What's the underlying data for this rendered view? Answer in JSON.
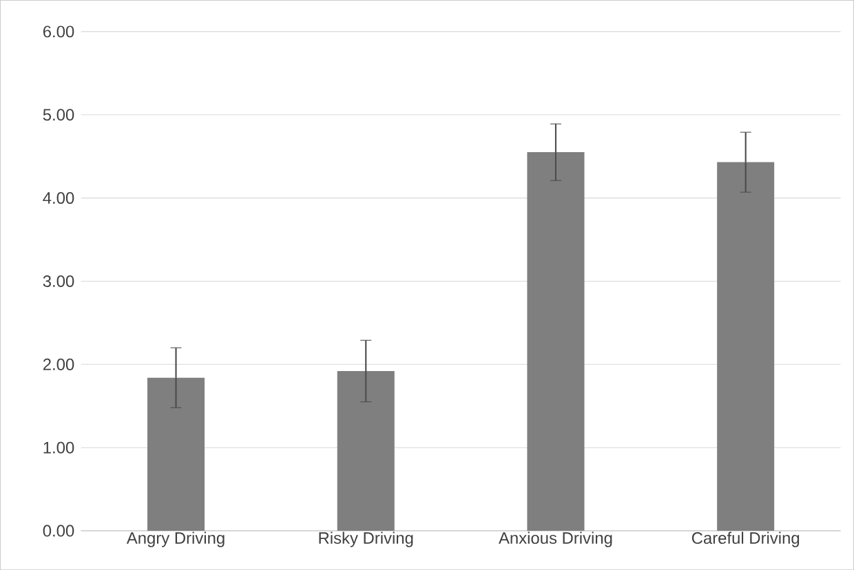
{
  "chart_data": {
    "type": "bar",
    "categories": [
      "Angry Driving",
      "Risky Driving",
      "Anxious Driving",
      "Careful Driving"
    ],
    "values": [
      1.84,
      1.92,
      4.55,
      4.43
    ],
    "errors": [
      0.36,
      0.37,
      0.34,
      0.36
    ],
    "color": "#7f7f7f",
    "ylim": [
      0,
      6
    ],
    "yticks": [
      {
        "value": 0,
        "label": "0.00"
      },
      {
        "value": 1,
        "label": "1.00"
      },
      {
        "value": 2,
        "label": "2.00"
      },
      {
        "value": 3,
        "label": "3.00"
      },
      {
        "value": 4,
        "label": "4.00"
      },
      {
        "value": 5,
        "label": "5.00"
      },
      {
        "value": 6,
        "label": "6.00"
      }
    ],
    "grid": "y"
  }
}
